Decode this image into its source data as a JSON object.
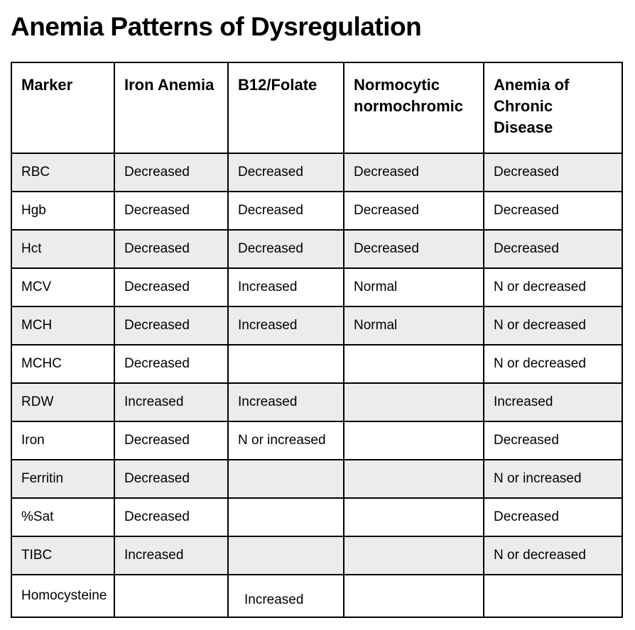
{
  "page": {
    "title": "Anemia Patterns of Dysregulation"
  },
  "table": {
    "columns": [
      "Marker",
      "Iron Anemia",
      "B12/Folate",
      "Normocytic normochromic",
      "Anemia of Chronic Disease"
    ],
    "rows": [
      {
        "marker": "RBC",
        "values": [
          "Decreased",
          "Decreased",
          "Decreased",
          "Decreased"
        ]
      },
      {
        "marker": "Hgb",
        "values": [
          "Decreased",
          "Decreased",
          "Decreased",
          "Decreased"
        ]
      },
      {
        "marker": "Hct",
        "values": [
          "Decreased",
          "Decreased",
          "Decreased",
          "Decreased"
        ]
      },
      {
        "marker": "MCV",
        "values": [
          "Decreased",
          "Increased",
          "Normal",
          "N or decreased"
        ]
      },
      {
        "marker": "MCH",
        "values": [
          "Decreased",
          "Increased",
          "Normal",
          "N or decreased"
        ]
      },
      {
        "marker": "MCHC",
        "values": [
          "Decreased",
          "",
          "",
          "N or decreased"
        ]
      },
      {
        "marker": "RDW",
        "values": [
          "Increased",
          "Increased",
          "",
          "Increased"
        ]
      },
      {
        "marker": "Iron",
        "values": [
          "Decreased",
          "N or increased",
          "",
          "Decreased"
        ]
      },
      {
        "marker": "Ferritin",
        "values": [
          "Decreased",
          "",
          "",
          "N or increased"
        ]
      },
      {
        "marker": "%Sat",
        "values": [
          "Decreased",
          "",
          "",
          "Decreased"
        ]
      },
      {
        "marker": "TIBC",
        "values": [
          "Increased",
          "",
          "",
          "N or decreased"
        ]
      },
      {
        "marker": "Homocysteine",
        "values": [
          "",
          "Increased",
          "",
          ""
        ]
      }
    ]
  },
  "colors": {
    "background": "#ffffff",
    "row_stripe": "#ececec",
    "border": "#000000",
    "text": "#000000"
  }
}
